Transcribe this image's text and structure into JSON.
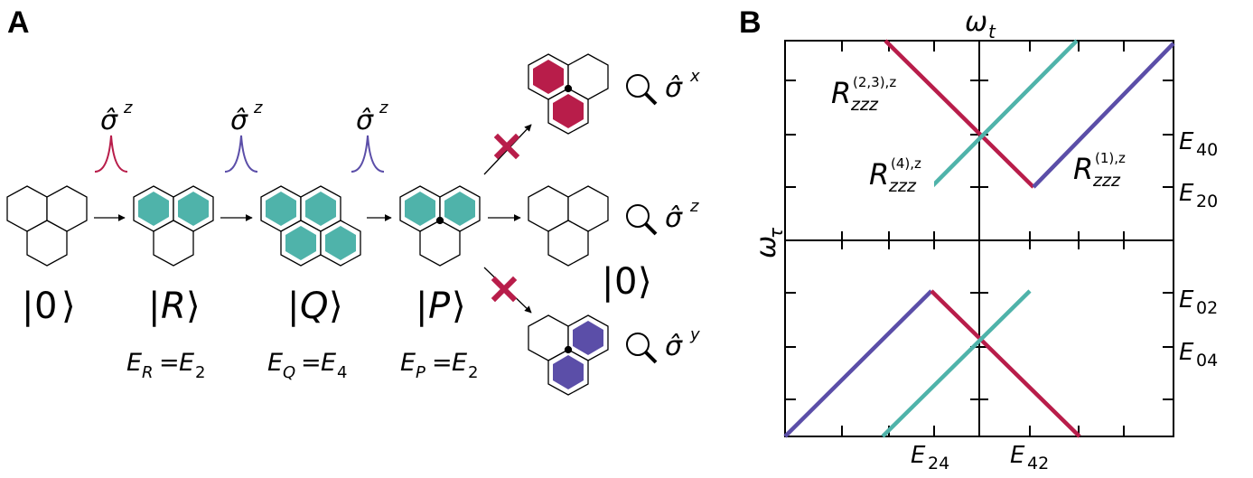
{
  "panel_a": {
    "letter": "A",
    "pulses": [
      {
        "label": "σ̂",
        "sup": "z",
        "color": "#b81d4a"
      },
      {
        "label": "σ̂",
        "sup": "z",
        "color": "#5b4ea8"
      },
      {
        "label": "σ̂",
        "sup": "z",
        "color": "#5b4ea8"
      }
    ],
    "states": [
      {
        "ket": "0",
        "energy": ""
      },
      {
        "ket": "R",
        "energy": "E",
        "energy_sub": "R",
        "rhs": "E",
        "rhs_sub": "2"
      },
      {
        "ket": "Q",
        "energy": "E",
        "energy_sub": "Q",
        "rhs": "E",
        "rhs_sub": "4"
      },
      {
        "ket": "P",
        "energy": "E",
        "energy_sub": "P",
        "rhs": "E",
        "rhs_sub": "2"
      }
    ],
    "outcomes": [
      {
        "operator": "σ̂",
        "sup": "x",
        "blocked": true,
        "fill": "#b81d4a"
      },
      {
        "operator": "σ̂",
        "sup": "z",
        "blocked": false,
        "ket": "0"
      },
      {
        "operator": "σ̂",
        "sup": "y",
        "blocked": true,
        "fill": "#5b4ea8"
      }
    ],
    "colors": {
      "teal": "#4fb3aa",
      "crimson": "#b81d4a",
      "purple": "#5b4ea8"
    }
  },
  "panel_b": {
    "letter": "B",
    "x_axis_label": "ω",
    "x_axis_sub": "t",
    "y_axis_label": "ω",
    "y_axis_sub": "τ",
    "right_ticks": [
      {
        "main": "E",
        "sub": "40"
      },
      {
        "main": "E",
        "sub": "20"
      },
      {
        "main": "E",
        "sub": "02"
      },
      {
        "main": "E",
        "sub": "04"
      }
    ],
    "bottom_ticks": [
      {
        "main": "E",
        "sub": "24"
      },
      {
        "main": "E",
        "sub": "42"
      }
    ],
    "annotations": [
      {
        "main": "R",
        "sub": "zzz",
        "sup": "(2,3),z"
      },
      {
        "main": "R",
        "sub": "zzz",
        "sup": "(4),z"
      },
      {
        "main": "R",
        "sub": "zzz",
        "sup": "(1),z"
      }
    ],
    "colors": {
      "crimson": "#b81d4a",
      "teal": "#4fb3aa",
      "purple": "#5b4ea8"
    }
  }
}
